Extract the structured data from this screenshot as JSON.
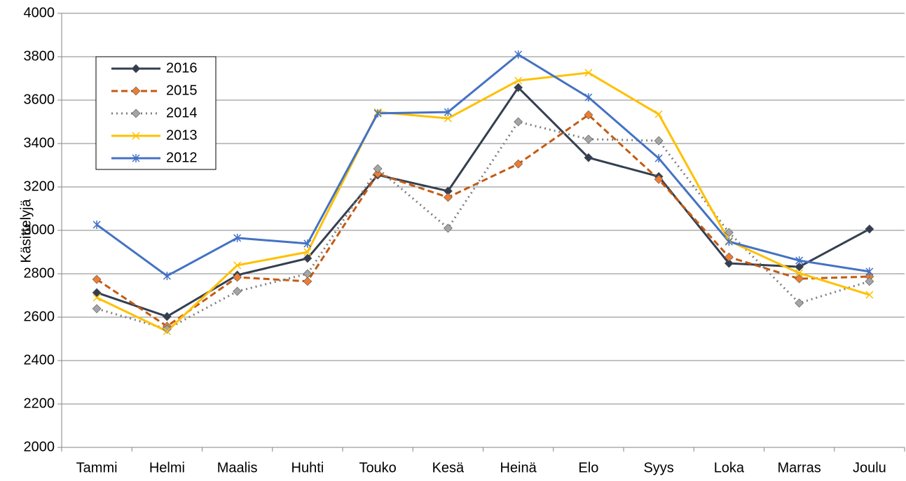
{
  "chart_data": {
    "type": "line",
    "y_label": "Käsittelyjä",
    "categories": [
      "Tammi",
      "Helmi",
      "Maalis",
      "Huhti",
      "Touko",
      "Kesä",
      "Heinä",
      "Elo",
      "Syys",
      "Loka",
      "Marras",
      "Joulu"
    ],
    "series": [
      {
        "name": "2016",
        "color": "#333f50",
        "marker_color": "#333f50",
        "dash": "solid",
        "marker": "diamond",
        "values": [
          2713,
          2603,
          2794,
          2871,
          3255,
          3181,
          3658,
          3335,
          3248,
          2848,
          2832,
          3006
        ]
      },
      {
        "name": "2015",
        "color": "#c55a11",
        "marker_color": "#ed7d31",
        "dash": "dashed",
        "marker": "diamond",
        "values": [
          2774,
          2558,
          2784,
          2765,
          3261,
          3152,
          3306,
          3532,
          3235,
          2877,
          2777,
          2787
        ]
      },
      {
        "name": "2014",
        "color": "#7f7f7f",
        "marker_color": "#a5a5a5",
        "dash": "dotted",
        "marker": "diamond",
        "values": [
          2639,
          2545,
          2719,
          2800,
          3284,
          3010,
          3500,
          3420,
          3413,
          2990,
          2665,
          2765
        ]
      },
      {
        "name": "2013",
        "color": "#ffc000",
        "marker_color": "#ffc000",
        "dash": "solid",
        "marker": "x",
        "values": [
          2690,
          2535,
          2839,
          2900,
          3545,
          3516,
          3690,
          3726,
          3535,
          2952,
          2803,
          2703
        ]
      },
      {
        "name": "2012",
        "color": "#4472c4",
        "marker_color": "#4472c4",
        "dash": "solid",
        "marker": "star",
        "values": [
          3026,
          2790,
          2965,
          2939,
          3539,
          3545,
          3810,
          3613,
          3332,
          2948,
          2861,
          2810
        ]
      }
    ],
    "ylim": [
      2000,
      4000
    ],
    "yticks": [
      2000,
      2200,
      2400,
      2600,
      2800,
      3000,
      3200,
      3400,
      3600,
      3800,
      4000
    ],
    "grid": true,
    "legend": "upper left"
  }
}
